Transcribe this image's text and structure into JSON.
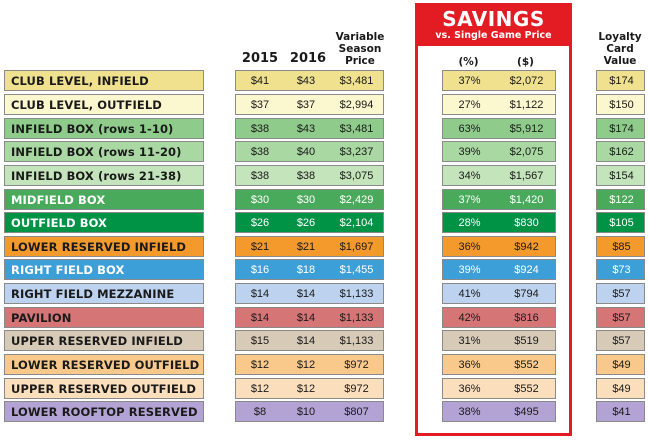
{
  "headers": {
    "y2015": "2015",
    "y2016": "2016",
    "variable_line1": "Variable",
    "variable_line2": "Season",
    "variable_line3": "Price",
    "savings_title": "SAVINGS",
    "savings_sub": "vs. Single Game Price",
    "pct": "(%)",
    "dollar": "($)",
    "loyalty_line1": "Loyalty",
    "loyalty_line2": "Card",
    "loyalty_line3": "Value"
  },
  "accent_color": "#e31b23",
  "rows": [
    {
      "label": "CLUB LEVEL, INFIELD",
      "p2015": "$41",
      "p2016": "$43",
      "variable": "$3,481",
      "pct": "37%",
      "dollars": "$2,072",
      "loyalty": "$174",
      "bg": "#efe18e",
      "fg": "#1a1a1a"
    },
    {
      "label": "CLUB LEVEL, OUTFIELD",
      "p2015": "$37",
      "p2016": "$37",
      "variable": "$2,994",
      "pct": "27%",
      "dollars": "$1,122",
      "loyalty": "$150",
      "bg": "#fbf7cf",
      "fg": "#1a1a1a"
    },
    {
      "label": "INFIELD BOX (rows 1-10)",
      "p2015": "$38",
      "p2016": "$43",
      "variable": "$3,481",
      "pct": "63%",
      "dollars": "$5,912",
      "loyalty": "$174",
      "bg": "#8fcc8c",
      "fg": "#1a1a1a"
    },
    {
      "label": "INFIELD BOX (rows 11-20)",
      "p2015": "$38",
      "p2016": "$40",
      "variable": "$3,237",
      "pct": "39%",
      "dollars": "$2,075",
      "loyalty": "$162",
      "bg": "#a9d8a3",
      "fg": "#1a1a1a"
    },
    {
      "label": "INFIELD BOX (rows 21-38)",
      "p2015": "$38",
      "p2016": "$38",
      "variable": "$3,075",
      "pct": "34%",
      "dollars": "$1,567",
      "loyalty": "$154",
      "bg": "#c4e4bb",
      "fg": "#1a1a1a"
    },
    {
      "label": "MIDFIELD BOX",
      "p2015": "$30",
      "p2016": "$30",
      "variable": "$2,429",
      "pct": "37%",
      "dollars": "$1,420",
      "loyalty": "$122",
      "bg": "#4aaa5b",
      "fg": "#ffffff"
    },
    {
      "label": "OUTFIELD BOX",
      "p2015": "$26",
      "p2016": "$26",
      "variable": "$2,104",
      "pct": "28%",
      "dollars": "$830",
      "loyalty": "$105",
      "bg": "#009245",
      "fg": "#ffffff"
    },
    {
      "label": "LOWER RESERVED INFIELD",
      "p2015": "$21",
      "p2016": "$21",
      "variable": "$1,697",
      "pct": "36%",
      "dollars": "$942",
      "loyalty": "$85",
      "bg": "#f49a2c",
      "fg": "#1a1a1a"
    },
    {
      "label": "RIGHT FIELD BOX",
      "p2015": "$16",
      "p2016": "$18",
      "variable": "$1,455",
      "pct": "39%",
      "dollars": "$924",
      "loyalty": "$73",
      "bg": "#3d9fd8",
      "fg": "#ffffff"
    },
    {
      "label": "RIGHT FIELD MEZZANINE",
      "p2015": "$14",
      "p2016": "$14",
      "variable": "$1,133",
      "pct": "41%",
      "dollars": "$794",
      "loyalty": "$57",
      "bg": "#bcd2ee",
      "fg": "#1a1a1a"
    },
    {
      "label": "PAVILION",
      "p2015": "$14",
      "p2016": "$14",
      "variable": "$1,133",
      "pct": "42%",
      "dollars": "$816",
      "loyalty": "$57",
      "bg": "#d67576",
      "fg": "#1a1a1a"
    },
    {
      "label": "UPPER RESERVED INFIELD",
      "p2015": "$15",
      "p2016": "$14",
      "variable": "$1,133",
      "pct": "31%",
      "dollars": "$519",
      "loyalty": "$57",
      "bg": "#d7cab7",
      "fg": "#1a1a1a"
    },
    {
      "label": "LOWER RESERVED OUTFIELD",
      "p2015": "$12",
      "p2016": "$12",
      "variable": "$972",
      "pct": "36%",
      "dollars": "$552",
      "loyalty": "$49",
      "bg": "#f8c98b",
      "fg": "#1a1a1a"
    },
    {
      "label": "UPPER RESERVED OUTFIELD",
      "p2015": "$12",
      "p2016": "$12",
      "variable": "$972",
      "pct": "36%",
      "dollars": "$552",
      "loyalty": "$49",
      "bg": "#fbdfbd",
      "fg": "#1a1a1a"
    },
    {
      "label": "LOWER ROOFTOP RESERVED",
      "p2015": "$8",
      "p2016": "$10",
      "variable": "$807",
      "pct": "38%",
      "dollars": "$495",
      "loyalty": "$41",
      "bg": "#b3a3d4",
      "fg": "#1a1a1a"
    }
  ]
}
